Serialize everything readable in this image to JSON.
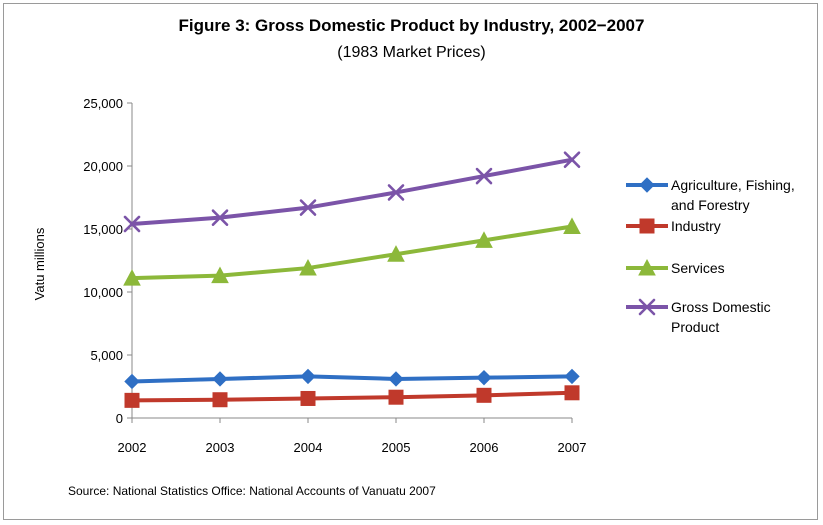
{
  "figure": {
    "title": "Figure 3: Gross Domestic Product by Industry, 2002−2007",
    "subtitle": "(1983 Market Prices)",
    "source": "Source: National Statistics Office: National Accounts of Vanuatu 2007"
  },
  "chart_data": {
    "type": "line",
    "title": "Figure 3: Gross Domestic Product by Industry, 2002−2007",
    "subtitle": "(1983 Market Prices)",
    "xlabel": "",
    "ylabel": "Vatu millions",
    "x": [
      "2002",
      "2003",
      "2004",
      "2005",
      "2006",
      "2007"
    ],
    "ylim": [
      0,
      25000
    ],
    "yticks": [
      0,
      5000,
      10000,
      15000,
      20000,
      25000
    ],
    "ytick_labels": [
      "0",
      "5,000",
      "10,000",
      "15,000",
      "20,000",
      "25,000"
    ],
    "grid": false,
    "legend_position": "right",
    "series": [
      {
        "name": "Agriculture, Fishing, and Forestry",
        "legend_lines": [
          "Agriculture, Fishing,",
          "and Forestry"
        ],
        "values": [
          2900,
          3100,
          3300,
          3100,
          3200,
          3300
        ],
        "color": "#2f6fc4",
        "marker": "diamond"
      },
      {
        "name": "Industry",
        "legend_lines": [
          "Industry"
        ],
        "values": [
          1400,
          1450,
          1550,
          1650,
          1800,
          2000
        ],
        "color": "#c0392b",
        "marker": "square"
      },
      {
        "name": "Services",
        "legend_lines": [
          "Services"
        ],
        "values": [
          11100,
          11300,
          11900,
          13000,
          14100,
          15200
        ],
        "color": "#8cb83a",
        "marker": "triangle"
      },
      {
        "name": "Gross Domestic Product",
        "legend_lines": [
          "Gross Domestic",
          "Product"
        ],
        "values": [
          15400,
          15900,
          16700,
          17900,
          19200,
          20500
        ],
        "color": "#7b54a8",
        "marker": "x"
      }
    ]
  }
}
